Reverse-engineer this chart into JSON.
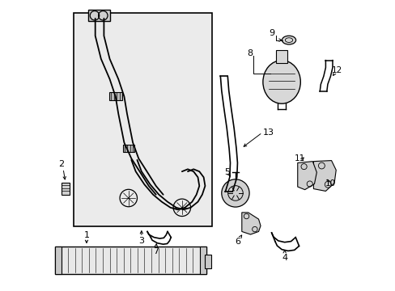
{
  "bg_color": "#ffffff",
  "box_bg": "#ebebeb",
  "box_border": "#000000",
  "line_color": "#000000",
  "part_color": "#cccccc",
  "figsize": [
    4.89,
    3.6
  ],
  "dpi": 100
}
